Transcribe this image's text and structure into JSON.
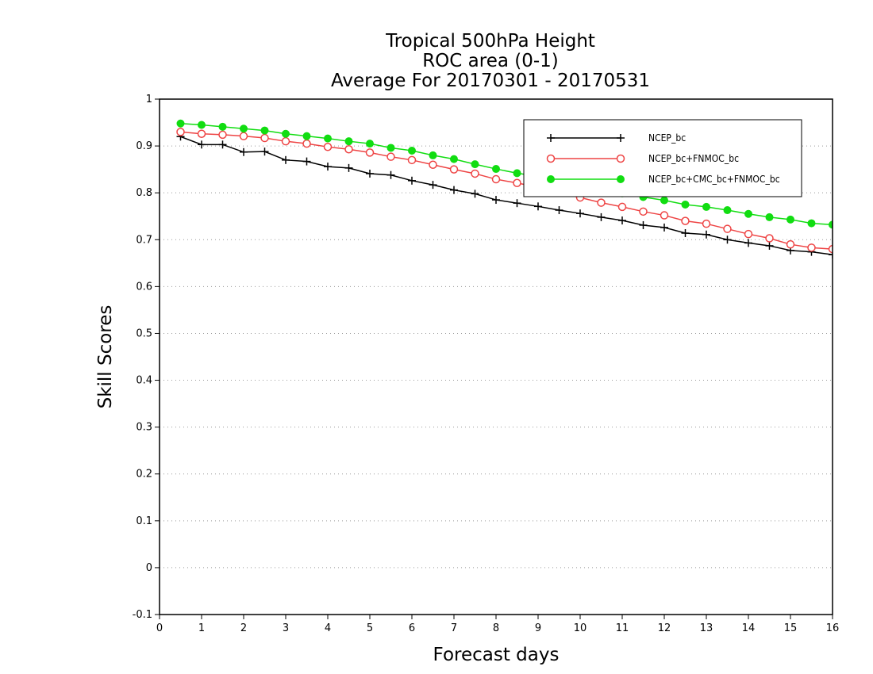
{
  "chart_data": {
    "type": "line",
    "title": [
      "Tropical 500hPa Height",
      "ROC area (0-1)",
      "Average For 20170301 - 20170531"
    ],
    "xlabel": "Forecast days",
    "ylabel": "Skill Scores",
    "xlim": [
      0,
      16
    ],
    "ylim": [
      -0.1,
      1
    ],
    "x_ticks": [
      0,
      1,
      2,
      3,
      4,
      5,
      6,
      7,
      8,
      9,
      10,
      11,
      12,
      13,
      14,
      15,
      16
    ],
    "x_tick_labels": [
      "0",
      "1",
      "2",
      "3",
      "4",
      "5",
      "6",
      "7",
      "8",
      "9",
      "10",
      "11",
      "12",
      "13",
      "14",
      "15",
      "16"
    ],
    "y_ticks": [
      -0.1,
      0,
      0.1,
      0.2,
      0.3,
      0.4,
      0.5,
      0.6,
      0.7,
      0.8,
      0.9,
      1
    ],
    "y_tick_labels": [
      "-0.1",
      "0",
      "0.1",
      "0.2",
      "0.3",
      "0.4",
      "0.5",
      "0.6",
      "0.7",
      "0.8",
      "0.9",
      "1"
    ],
    "grid": "horizontal-dotted",
    "legend_position": "top-right",
    "x": [
      0.5,
      1,
      1.5,
      2,
      2.5,
      3,
      3.5,
      4,
      4.5,
      5,
      5.5,
      6,
      6.5,
      7,
      7.5,
      8,
      8.5,
      9,
      9.5,
      10,
      10.5,
      11,
      11.5,
      12,
      12.5,
      13,
      13.5,
      14,
      14.5,
      15,
      15.5,
      16
    ],
    "series": [
      {
        "name": "NCEP_bc",
        "color": "#000000",
        "marker": "plus",
        "values": [
          0.92,
          0.903,
          0.903,
          0.887,
          0.888,
          0.87,
          0.867,
          0.856,
          0.853,
          0.841,
          0.838,
          0.826,
          0.817,
          0.806,
          0.798,
          0.785,
          0.778,
          0.771,
          0.763,
          0.756,
          0.748,
          0.741,
          0.731,
          0.726,
          0.714,
          0.711,
          0.7,
          0.693,
          0.687,
          0.677,
          0.674,
          0.668
        ]
      },
      {
        "name": "NCEP_bc+FNMOC_bc",
        "color": "#ee4444",
        "marker": "open-circle",
        "values": [
          0.93,
          0.926,
          0.924,
          0.921,
          0.917,
          0.91,
          0.905,
          0.898,
          0.893,
          0.886,
          0.877,
          0.87,
          0.86,
          0.85,
          0.841,
          0.829,
          0.821,
          0.812,
          0.8,
          0.79,
          0.779,
          0.77,
          0.76,
          0.752,
          0.74,
          0.734,
          0.723,
          0.712,
          0.703,
          0.69,
          0.683,
          0.68
        ]
      },
      {
        "name": "NCEP_bc+CMC_bc+FNMOC_bc",
        "color": "#11dd11",
        "marker": "filled-circle",
        "values": [
          0.948,
          0.945,
          0.941,
          0.937,
          0.933,
          0.926,
          0.921,
          0.916,
          0.91,
          0.905,
          0.896,
          0.89,
          0.88,
          0.872,
          0.861,
          0.851,
          0.842,
          0.835,
          0.826,
          0.816,
          0.807,
          0.799,
          0.791,
          0.784,
          0.775,
          0.77,
          0.763,
          0.755,
          0.748,
          0.743,
          0.735,
          0.732
        ]
      }
    ]
  }
}
